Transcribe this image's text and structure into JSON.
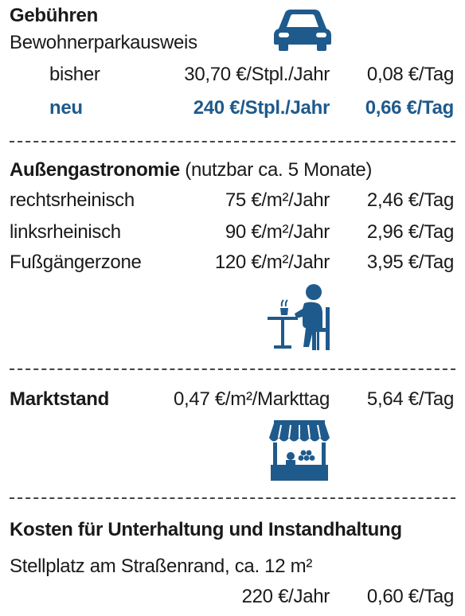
{
  "colors": {
    "accent": "#1f5a8c",
    "icon": "#1f5a8c",
    "text": "#1a1a1a",
    "divider": "#444444"
  },
  "fees": {
    "title": "Gebühren",
    "subtitle": "Bewohnerparkausweis",
    "icon": "car-icon",
    "rows": [
      {
        "label": "bisher",
        "per_year": "30,70 €/Stpl./Jahr",
        "per_day": "0,08 €/Tag"
      },
      {
        "label": "neu",
        "per_year": "240 €/Stpl./Jahr",
        "per_day": "0,66 €/Tag"
      }
    ]
  },
  "outdoor": {
    "title": "Außengastronomie",
    "note": "(nutzbar ca. 5 Monate)",
    "icon": "cafe-guest-icon",
    "rows": [
      {
        "label": "rechtsrheinisch",
        "per_year": "75 €/m²/Jahr",
        "per_day": "2,46 €/Tag"
      },
      {
        "label": "linksrheinisch",
        "per_year": "90 €/m²/Jahr",
        "per_day": "2,96 €/Tag"
      },
      {
        "label": "Fußgängerzone",
        "per_year": "120 €/m²/Jahr",
        "per_day": "3,95 €/Tag"
      }
    ]
  },
  "market": {
    "title": "Marktstand",
    "per_day_area": "0,47 €/m²/Markttag",
    "per_day": "5,64 €/Tag",
    "icon": "market-stall-icon"
  },
  "upkeep": {
    "title": "Kosten für Unterhaltung und Instandhaltung",
    "subtitle": "Stellplatz am Straßenrand, ca. 12 m²",
    "per_year": "220 €/Jahr",
    "per_day": "0,60 €/Tag"
  }
}
